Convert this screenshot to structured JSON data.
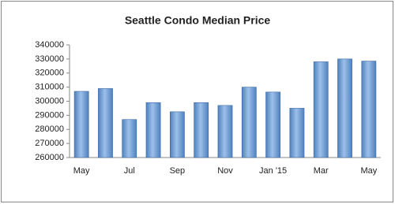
{
  "chart_data": {
    "type": "bar",
    "title": "Seattle Condo Median Price",
    "categories": [
      "May",
      null,
      "Jul",
      null,
      "Sep",
      null,
      "Nov",
      null,
      "Jan '15",
      null,
      "Mar",
      null,
      "May"
    ],
    "values": [
      307000,
      309000,
      287000,
      299000,
      292500,
      299000,
      297000,
      310000,
      306500,
      295000,
      328000,
      330000,
      328500
    ],
    "color": "#4f81bd",
    "ylim": [
      260000,
      340000
    ],
    "yticks": [
      260000,
      270000,
      280000,
      290000,
      300000,
      310000,
      320000,
      330000,
      340000
    ],
    "grid": false
  }
}
